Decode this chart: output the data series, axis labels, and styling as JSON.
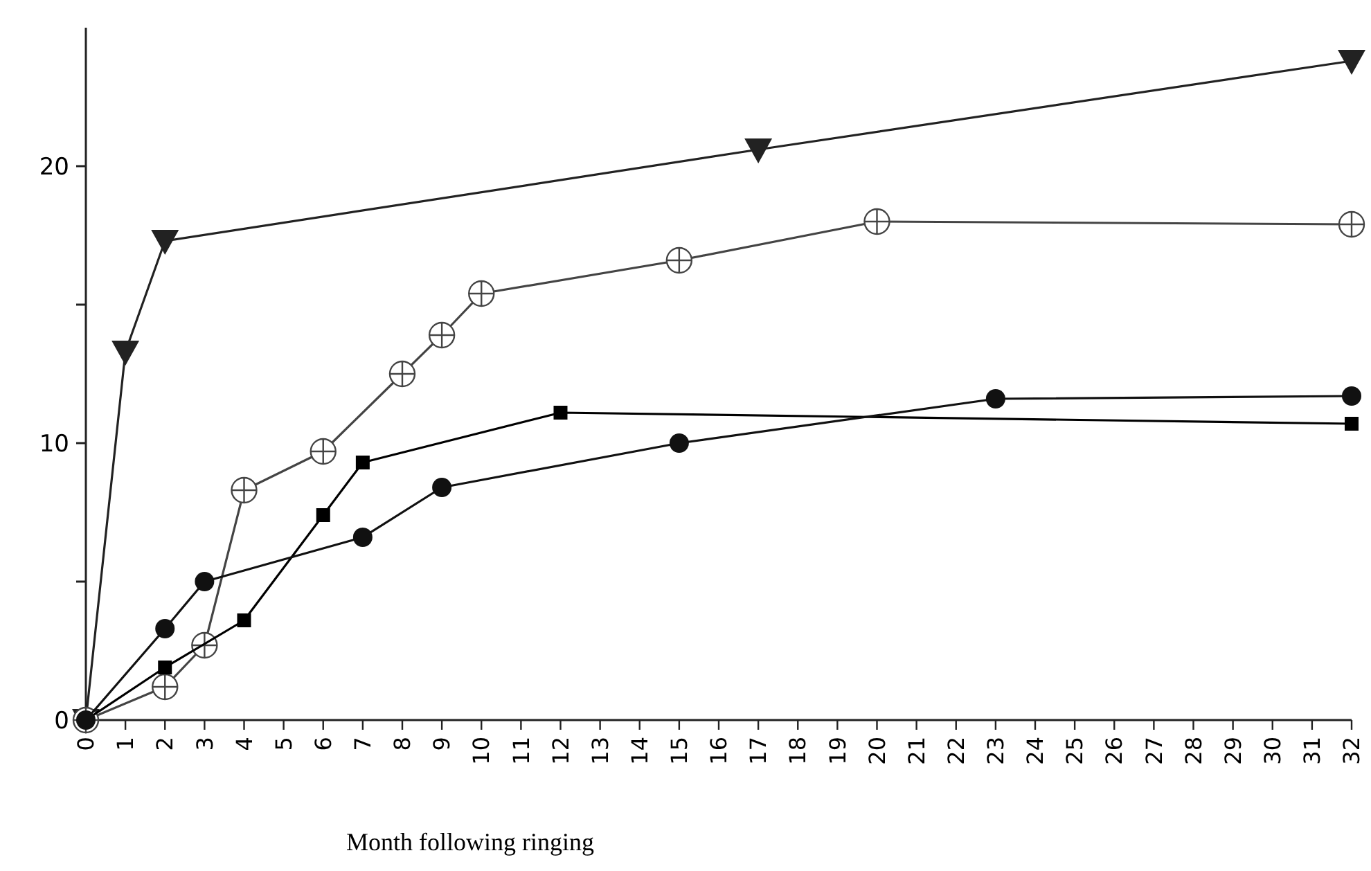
{
  "chart_data": {
    "type": "line",
    "xlabel": "Month following ringing",
    "xlim": [
      0,
      32
    ],
    "ylim": [
      0,
      25
    ],
    "xticks": [
      0,
      1,
      2,
      3,
      4,
      5,
      6,
      7,
      8,
      9,
      10,
      11,
      12,
      13,
      14,
      15,
      16,
      17,
      18,
      19,
      20,
      21,
      22,
      23,
      24,
      25,
      26,
      27,
      28,
      29,
      30,
      31,
      32
    ],
    "yticks": [
      0,
      {
        "value": 5,
        "label": null
      },
      10,
      {
        "value": 15,
        "label": null
      },
      20
    ],
    "grid": false,
    "series": [
      {
        "color": "#222222",
        "marker": "triangle",
        "x": [
          0,
          1,
          2,
          17,
          32
        ],
        "values": [
          0,
          13.3,
          17.3,
          20.6,
          23.8
        ]
      },
      {
        "color": "#444444",
        "marker": "cross",
        "x": [
          0,
          2,
          3,
          4,
          6,
          8,
          9,
          10,
          15,
          20,
          32
        ],
        "values": [
          0,
          1.2,
          2.7,
          8.3,
          9.7,
          12.5,
          13.9,
          15.4,
          16.6,
          18,
          17.9
        ]
      },
      {
        "color": "#000000",
        "marker": "square",
        "x": [
          0,
          2,
          4,
          6,
          7,
          12,
          32
        ],
        "values": [
          0,
          1.9,
          3.6,
          7.4,
          9.3,
          11.1,
          10.7
        ]
      },
      {
        "color": "#111111",
        "marker": "circle",
        "x": [
          0,
          2,
          3,
          7,
          9,
          15,
          23,
          32
        ],
        "values": [
          0,
          3.3,
          5,
          6.6,
          8.4,
          10,
          11.6,
          11.7
        ]
      }
    ]
  }
}
